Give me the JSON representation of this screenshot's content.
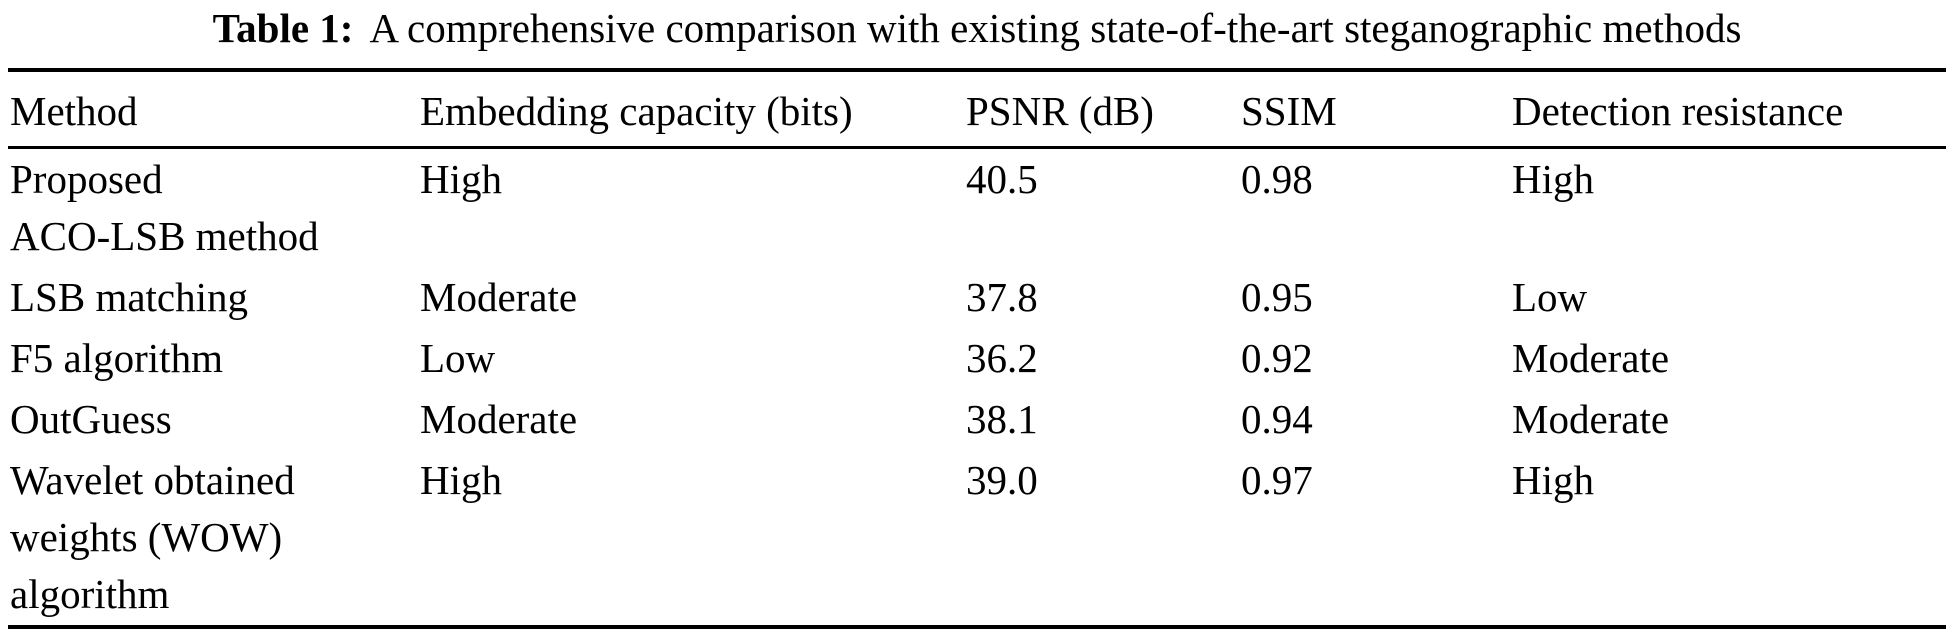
{
  "table": {
    "caption": {
      "label": "Table 1:",
      "text": "A comprehensive comparison with existing state-of-the-art steganographic methods"
    },
    "columns": [
      "Method",
      "Embedding capacity (bits)",
      "PSNR (dB)",
      "SSIM",
      "Detection resistance"
    ],
    "rows": [
      [
        "Proposed\nACO-LSB method",
        "High",
        "40.5",
        "0.98",
        "High"
      ],
      [
        "LSB matching",
        "Moderate",
        "37.8",
        "0.95",
        "Low"
      ],
      [
        "F5 algorithm",
        "Low",
        "36.2",
        "0.92",
        "Moderate"
      ],
      [
        "OutGuess",
        "Moderate",
        "38.1",
        "0.94",
        "Moderate"
      ],
      [
        "Wavelet obtained\nweights (WOW)\nalgorithm",
        "High",
        "39.0",
        "0.97",
        "High"
      ]
    ]
  }
}
